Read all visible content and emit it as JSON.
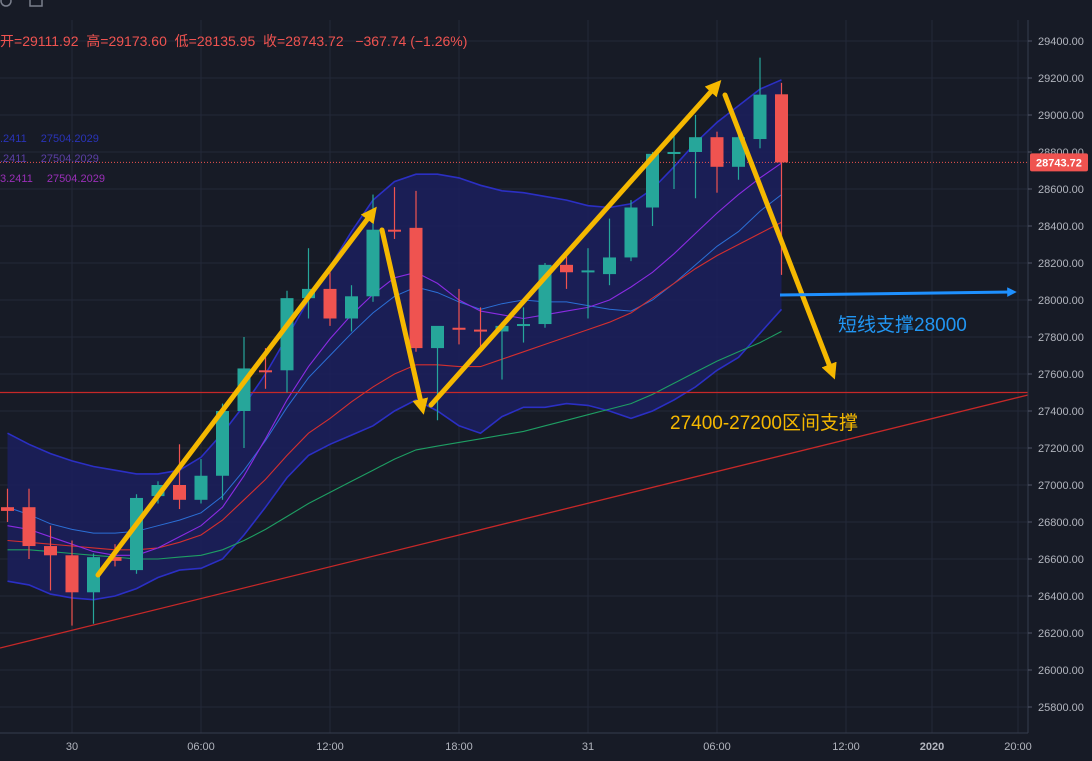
{
  "header": {
    "open_label": "开=",
    "open_value": "29111.92",
    "high_label": "高=",
    "high_value": "29173.60",
    "low_label": "低=",
    "low_value": "28135.95",
    "close_label": "收=",
    "close_value": "28743.72",
    "change": "−367.74 (−1.26%)"
  },
  "indicators": [
    {
      "left": ".2411",
      "right": "27504.2029"
    },
    {
      "left": ".2411",
      "right": "27504.2029"
    },
    {
      "left": "3.2411",
      "right": "27504.2029"
    }
  ],
  "colors": {
    "background": "#171b26",
    "grid": "#232838",
    "up": "#26a69a",
    "down": "#ef5350",
    "bollinger_fill": "#1b1f5e",
    "bollinger_line": "#2b2fc4",
    "ma_fast": "#2b6fd6",
    "ma_purple": "#8a2be2",
    "ma_red": "#d32f2f",
    "ma_green": "#1e9e63",
    "arrow_yellow": "#f5b800",
    "arrow_blue": "#1e90ff"
  },
  "chart_data": {
    "type": "candlestick",
    "price_axis": {
      "min": 25700,
      "max": 29500,
      "ticks": [
        25800,
        26000,
        26200,
        26400,
        26600,
        26800,
        27000,
        27200,
        27400,
        27600,
        27800,
        28000,
        28200,
        28400,
        28600,
        28800,
        29000,
        29200,
        29400
      ]
    },
    "time_axis": {
      "labels": [
        "30",
        "06:00",
        "12:00",
        "18:00",
        "31",
        "06:00",
        "12:00",
        "2020",
        "20:00"
      ],
      "label_bars": [
        3,
        9,
        15,
        21,
        27,
        33,
        39,
        43,
        47
      ]
    },
    "last_price_label": "28743.72",
    "candles": [
      {
        "o": 26880,
        "h": 26980,
        "l": 26800,
        "c": 26860
      },
      {
        "o": 26880,
        "h": 26980,
        "l": 26600,
        "c": 26670
      },
      {
        "o": 26670,
        "h": 26780,
        "l": 26430,
        "c": 26620
      },
      {
        "o": 26620,
        "h": 26700,
        "l": 26240,
        "c": 26420
      },
      {
        "o": 26420,
        "h": 26630,
        "l": 26250,
        "c": 26610
      },
      {
        "o": 26610,
        "h": 26680,
        "l": 26560,
        "c": 26590
      },
      {
        "o": 26540,
        "h": 26950,
        "l": 26520,
        "c": 26930
      },
      {
        "o": 26940,
        "h": 27020,
        "l": 26900,
        "c": 27000
      },
      {
        "o": 27000,
        "h": 27220,
        "l": 26870,
        "c": 26920
      },
      {
        "o": 26920,
        "h": 27140,
        "l": 26900,
        "c": 27050
      },
      {
        "o": 27050,
        "h": 27440,
        "l": 26920,
        "c": 27400
      },
      {
        "o": 27400,
        "h": 27800,
        "l": 27200,
        "c": 27630
      },
      {
        "o": 27620,
        "h": 27740,
        "l": 27520,
        "c": 27610
      },
      {
        "o": 27620,
        "h": 28050,
        "l": 27500,
        "c": 28010
      },
      {
        "o": 28010,
        "h": 28280,
        "l": 27900,
        "c": 28060
      },
      {
        "o": 28060,
        "h": 28150,
        "l": 27860,
        "c": 27900
      },
      {
        "o": 27900,
        "h": 28080,
        "l": 27830,
        "c": 28020
      },
      {
        "o": 28020,
        "h": 28570,
        "l": 27990,
        "c": 28380
      },
      {
        "o": 28380,
        "h": 28610,
        "l": 28330,
        "c": 28370
      },
      {
        "o": 28390,
        "h": 28590,
        "l": 27720,
        "c": 27740
      },
      {
        "o": 27740,
        "h": 27850,
        "l": 27350,
        "c": 27860
      },
      {
        "o": 27850,
        "h": 28060,
        "l": 27760,
        "c": 27840
      },
      {
        "o": 27840,
        "h": 27960,
        "l": 27740,
        "c": 27830
      },
      {
        "o": 27830,
        "h": 27880,
        "l": 27570,
        "c": 27860
      },
      {
        "o": 27860,
        "h": 27960,
        "l": 27770,
        "c": 27870
      },
      {
        "o": 27870,
        "h": 28200,
        "l": 27850,
        "c": 28190
      },
      {
        "o": 28190,
        "h": 28270,
        "l": 28060,
        "c": 28150
      },
      {
        "o": 28150,
        "h": 28280,
        "l": 27900,
        "c": 28160
      },
      {
        "o": 28140,
        "h": 28440,
        "l": 28080,
        "c": 28230
      },
      {
        "o": 28230,
        "h": 28540,
        "l": 28210,
        "c": 28500
      },
      {
        "o": 28500,
        "h": 28800,
        "l": 28400,
        "c": 28790
      },
      {
        "o": 28790,
        "h": 28900,
        "l": 28600,
        "c": 28800
      },
      {
        "o": 28800,
        "h": 29000,
        "l": 28550,
        "c": 28880
      },
      {
        "o": 28880,
        "h": 28910,
        "l": 28580,
        "c": 28720
      },
      {
        "o": 28720,
        "h": 28900,
        "l": 28650,
        "c": 28880
      },
      {
        "o": 28870,
        "h": 29310,
        "l": 28820,
        "c": 29110
      },
      {
        "o": 29111.92,
        "h": 29173.6,
        "l": 28135.95,
        "c": 28743.72
      }
    ],
    "bollinger_upper": [
      27280,
      27220,
      27170,
      27130,
      27100,
      27080,
      27060,
      27060,
      27080,
      27150,
      27280,
      27430,
      27600,
      27800,
      28000,
      28180,
      28370,
      28540,
      28640,
      28680,
      28680,
      28660,
      28620,
      28590,
      28580,
      28560,
      28540,
      28510,
      28500,
      28520,
      28600,
      28720,
      28850,
      28960,
      29050,
      29140,
      29190
    ],
    "bollinger_mid": [
      26880,
      26840,
      26790,
      26760,
      26740,
      26740,
      26750,
      26780,
      26810,
      26850,
      26940,
      27080,
      27240,
      27420,
      27580,
      27700,
      27820,
      27930,
      28020,
      28070,
      28040,
      27990,
      27950,
      27980,
      28000,
      27990,
      27990,
      27970,
      27950,
      27940,
      28000,
      28090,
      28190,
      28290,
      28370,
      28480,
      28570
    ],
    "bollinger_lower": [
      26480,
      26460,
      26410,
      26390,
      26380,
      26400,
      26440,
      26500,
      26540,
      26550,
      26600,
      26730,
      26880,
      27040,
      27160,
      27220,
      27270,
      27320,
      27400,
      27460,
      27400,
      27320,
      27280,
      27370,
      27420,
      27420,
      27440,
      27430,
      27400,
      27360,
      27400,
      27460,
      27530,
      27620,
      27690,
      27820,
      27950
    ],
    "ma_purple": [
      26780,
      26760,
      26720,
      26680,
      26640,
      26620,
      26620,
      26660,
      26720,
      26780,
      26880,
      27050,
      27250,
      27460,
      27640,
      27790,
      27920,
      28030,
      28120,
      28150,
      28090,
      28000,
      27940,
      27920,
      27900,
      27920,
      27940,
      27960,
      28000,
      28070,
      28150,
      28250,
      28360,
      28470,
      28570,
      28660,
      28740
    ],
    "ma_red": [
      26700,
      26690,
      26680,
      26670,
      26660,
      26650,
      26650,
      26660,
      26690,
      26730,
      26810,
      26920,
      27030,
      27160,
      27280,
      27360,
      27450,
      27530,
      27600,
      27650,
      27650,
      27640,
      27640,
      27680,
      27720,
      27760,
      27800,
      27840,
      27880,
      27930,
      28010,
      28090,
      28170,
      28240,
      28300,
      28360,
      28420
    ],
    "ma_green": [
      26650,
      26650,
      26640,
      26630,
      26620,
      26610,
      26600,
      26600,
      26610,
      26620,
      26650,
      26700,
      26760,
      26830,
      26900,
      26960,
      27020,
      27080,
      27140,
      27190,
      27210,
      27230,
      27250,
      27270,
      27290,
      27320,
      27350,
      27380,
      27410,
      27440,
      27490,
      27550,
      27610,
      27670,
      27720,
      27770,
      27830
    ],
    "support_line_price": 27500,
    "annotations": [
      "短线支撑28000",
      "27400-27200区间支撑"
    ]
  }
}
